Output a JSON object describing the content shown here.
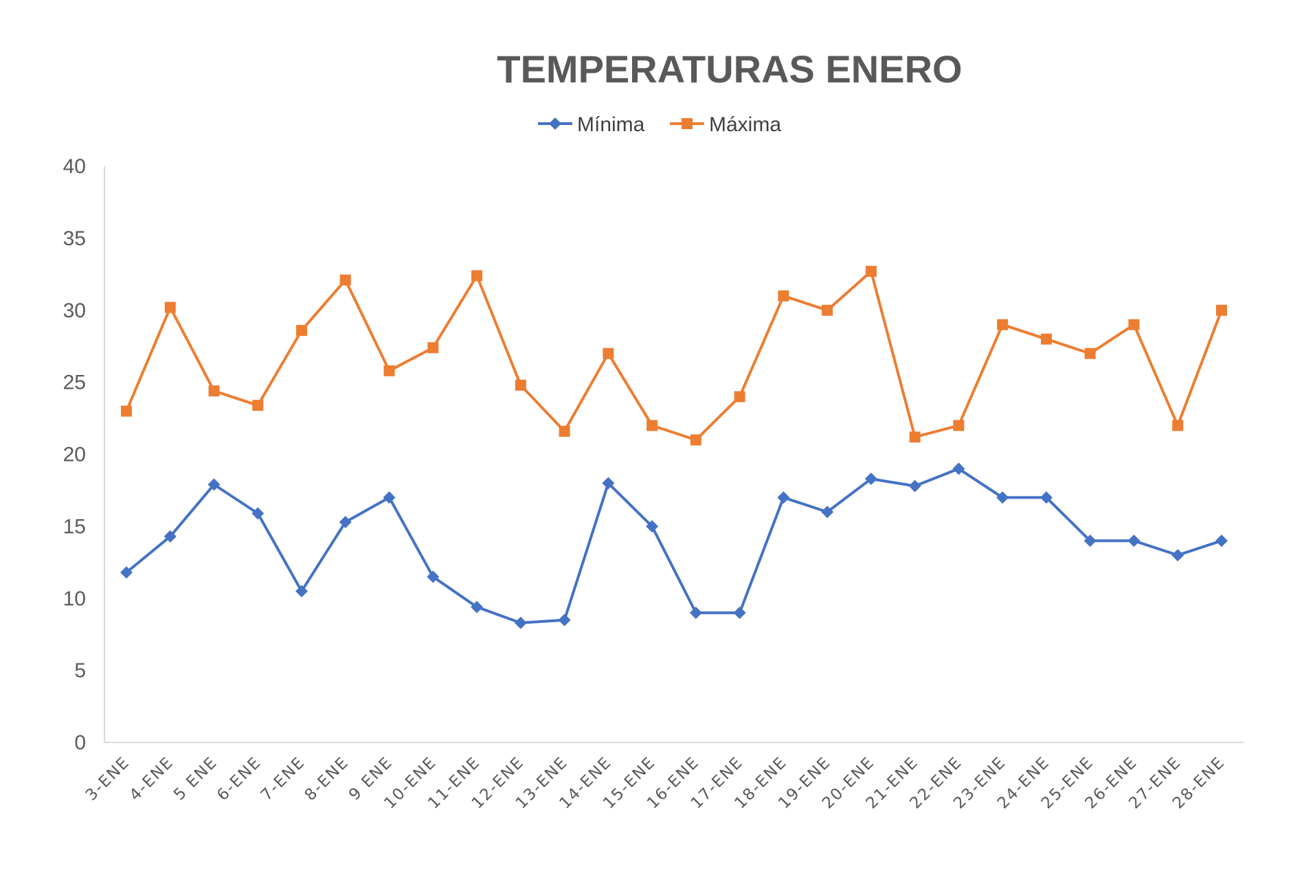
{
  "chart_data": {
    "type": "line",
    "title": "TEMPERATURAS ENERO",
    "xlabel": "",
    "ylabel": "",
    "ylim": [
      0,
      40
    ],
    "yticks": [
      0,
      5,
      10,
      15,
      20,
      25,
      30,
      35,
      40
    ],
    "grid": false,
    "legend_position": "top",
    "categories": [
      "3-ENE",
      "4-ENE",
      "5 ENE",
      "6-ENE",
      "7-ENE",
      "8-ENE",
      "9 ENE",
      "10-ENE",
      "11-ENE",
      "12-ENE",
      "13-ENE",
      "14-ENE",
      "15-ENE",
      "16-ENE",
      "17-ENE",
      "18-ENE",
      "19-ENE",
      "20-ENE",
      "21-ENE",
      "22-ENE",
      "23-ENE",
      "24-ENE",
      "25-ENE",
      "26-ENE",
      "27-ENE",
      "28-ENE"
    ],
    "series": [
      {
        "name": "Mínima",
        "color": "#4472c4",
        "marker": "diamond",
        "values": [
          11.8,
          14.3,
          17.9,
          15.9,
          10.5,
          15.3,
          17.0,
          11.5,
          9.4,
          8.3,
          8.5,
          18.0,
          15.0,
          9.0,
          9.0,
          17.0,
          16.0,
          18.3,
          17.8,
          19.0,
          17.0,
          17.0,
          14.0,
          14.0,
          13.0,
          14.0
        ]
      },
      {
        "name": "Máxima",
        "color": "#ed7d31",
        "marker": "square",
        "values": [
          23.0,
          30.2,
          24.4,
          23.4,
          28.6,
          32.1,
          25.8,
          27.4,
          32.4,
          24.8,
          21.6,
          27.0,
          22.0,
          21.0,
          24.0,
          31.0,
          30.0,
          32.7,
          21.2,
          22.0,
          29.0,
          28.0,
          27.0,
          29.0,
          22.0,
          30.0
        ]
      }
    ]
  }
}
